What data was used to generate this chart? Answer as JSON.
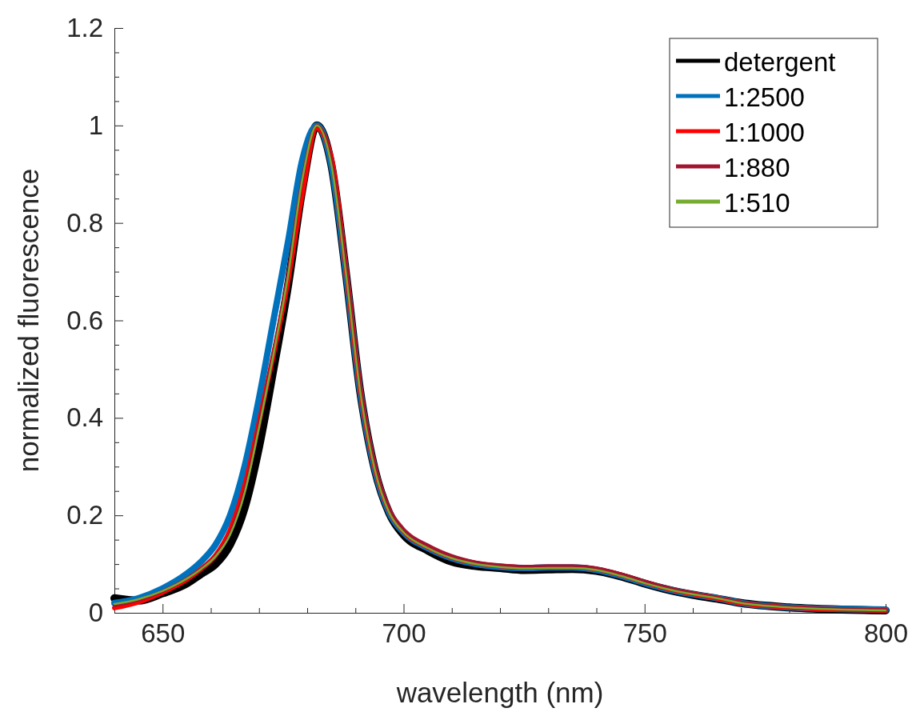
{
  "chart_data": {
    "type": "line",
    "xlabel": "wavelength (nm)",
    "ylabel": "normalized fluorescence",
    "x": [
      640,
      645,
      650,
      655,
      658,
      661,
      664,
      667,
      670,
      673,
      676,
      679,
      682,
      685,
      688,
      691,
      694,
      697,
      700,
      705,
      710,
      715,
      720,
      725,
      730,
      735,
      740,
      745,
      750,
      755,
      760,
      765,
      770,
      780,
      790,
      800
    ],
    "xlim": [
      640,
      800
    ],
    "xticks": [
      {
        "value": 640,
        "label": null
      },
      650,
      {
        "value": 660,
        "label": null
      },
      {
        "value": 670,
        "label": null
      },
      {
        "value": 680,
        "label": null
      },
      {
        "value": 690,
        "label": null
      },
      700,
      {
        "value": 710,
        "label": null
      },
      {
        "value": 720,
        "label": null
      },
      {
        "value": 730,
        "label": null
      },
      {
        "value": 740,
        "label": null
      },
      750,
      {
        "value": 760,
        "label": null
      },
      {
        "value": 770,
        "label": null
      },
      {
        "value": 780,
        "label": null
      },
      {
        "value": 790,
        "label": null
      },
      800
    ],
    "ylim": [
      0,
      1.2
    ],
    "yticks": [
      0,
      {
        "value": 0.05,
        "label": null
      },
      0.2,
      {
        "value": 0.1,
        "label": null
      },
      {
        "value": 0.15,
        "label": null
      },
      {
        "value": 0.25,
        "label": null
      },
      {
        "value": 0.3,
        "label": null
      },
      {
        "value": 0.35,
        "label": null
      },
      0.4,
      {
        "value": 0.45,
        "label": null
      },
      {
        "value": 0.5,
        "label": null
      },
      {
        "value": 0.55,
        "label": null
      },
      0.6,
      {
        "value": 0.65,
        "label": null
      },
      {
        "value": 0.7,
        "label": null
      },
      {
        "value": 0.75,
        "label": null
      },
      0.8,
      {
        "value": 0.85,
        "label": null
      },
      {
        "value": 0.9,
        "label": null
      },
      {
        "value": 0.95,
        "label": null
      },
      1,
      {
        "value": 1.05,
        "label": null
      },
      {
        "value": 1.1,
        "label": null
      },
      {
        "value": 1.15,
        "label": null
      },
      1.2
    ],
    "grid": false,
    "legend": "top right",
    "line_style": "solid",
    "marker": "none",
    "series": [
      {
        "name": "detergent",
        "color": "#000000",
        "values": [
          0.03,
          0.025,
          0.04,
          0.06,
          0.08,
          0.1,
          0.14,
          0.215,
          0.34,
          0.5,
          0.67,
          0.87,
          1,
          0.92,
          0.7,
          0.454,
          0.295,
          0.205,
          0.16,
          0.128,
          0.105,
          0.096,
          0.092,
          0.088,
          0.089,
          0.09,
          0.086,
          0.075,
          0.06,
          0.047,
          0.037,
          0.029,
          0.02,
          0.011,
          0.007,
          0.005
        ]
      },
      {
        "name": "1:2500",
        "color": "#0072bd",
        "values": [
          0.02,
          0.03,
          0.05,
          0.08,
          0.105,
          0.14,
          0.2,
          0.3,
          0.44,
          0.6,
          0.76,
          0.93,
          1,
          0.92,
          0.7,
          0.454,
          0.295,
          0.206,
          0.165,
          0.133,
          0.112,
          0.1,
          0.094,
          0.092,
          0.093,
          0.093,
          0.088,
          0.076,
          0.061,
          0.048,
          0.038,
          0.03,
          0.02,
          0.011,
          0.008,
          0.006
        ]
      },
      {
        "name": "1:1000",
        "color": "#ff0000",
        "values": [
          0.01,
          0.022,
          0.042,
          0.068,
          0.09,
          0.118,
          0.17,
          0.26,
          0.39,
          0.53,
          0.68,
          0.86,
          0.995,
          0.935,
          0.71,
          0.46,
          0.3,
          0.21,
          0.167,
          0.135,
          0.114,
          0.102,
          0.096,
          0.093,
          0.094,
          0.094,
          0.09,
          0.078,
          0.063,
          0.049,
          0.039,
          0.03,
          0.02,
          0.011,
          0.007,
          0.005
        ]
      },
      {
        "name": "1:880",
        "color": "#a2142f",
        "values": [
          0.015,
          0.026,
          0.044,
          0.07,
          0.09,
          0.117,
          0.163,
          0.25,
          0.385,
          0.535,
          0.695,
          0.89,
          1,
          0.93,
          0.715,
          0.465,
          0.305,
          0.215,
          0.172,
          0.139,
          0.117,
          0.104,
          0.098,
          0.095,
          0.096,
          0.096,
          0.092,
          0.08,
          0.065,
          0.051,
          0.04,
          0.031,
          0.021,
          0.012,
          0.008,
          0.006
        ]
      },
      {
        "name": "1:510",
        "color": "#77ac30",
        "values": [
          0.018,
          0.028,
          0.045,
          0.07,
          0.09,
          0.116,
          0.16,
          0.245,
          0.38,
          0.53,
          0.69,
          0.89,
          1,
          0.92,
          0.7,
          0.454,
          0.295,
          0.206,
          0.165,
          0.133,
          0.112,
          0.1,
          0.094,
          0.091,
          0.092,
          0.092,
          0.088,
          0.076,
          0.061,
          0.048,
          0.038,
          0.03,
          0.02,
          0.011,
          0.007,
          0.005
        ]
      }
    ]
  }
}
